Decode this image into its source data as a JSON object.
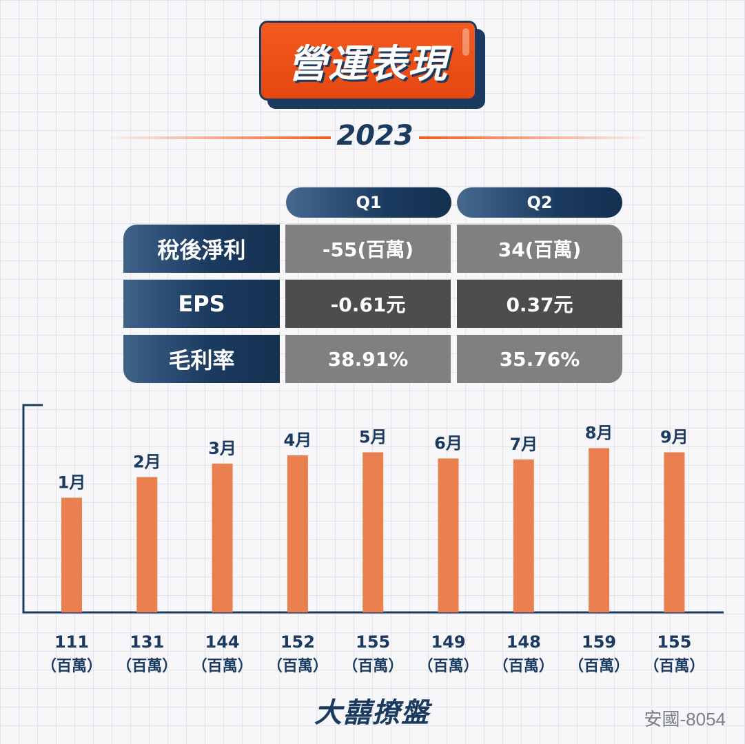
{
  "title": "營運表現",
  "year": "2023",
  "quarters": [
    "Q1",
    "Q2"
  ],
  "table": [
    {
      "label": "稅後淨利",
      "q1": "-55(百萬)",
      "q2": "34(百萬)",
      "tone": "light"
    },
    {
      "label": "EPS",
      "q1": "-0.61元",
      "q2": "0.37元",
      "tone": "dark"
    },
    {
      "label": "毛利率",
      "q1": "38.91%",
      "q2": "35.76%",
      "tone": "light"
    }
  ],
  "chart_data": {
    "type": "bar",
    "categories": [
      "1月",
      "2月",
      "3月",
      "4月",
      "5月",
      "6月",
      "7月",
      "8月",
      "9月"
    ],
    "values": [
      111,
      131,
      144,
      152,
      155,
      149,
      148,
      159,
      155
    ],
    "value_unit": "（百萬）",
    "bar_color": "#ea804f",
    "axis_color": "#1b3a60",
    "ylim": [
      0,
      160
    ]
  },
  "brand": "大囍撩盤",
  "stock_label": "安國-8054"
}
